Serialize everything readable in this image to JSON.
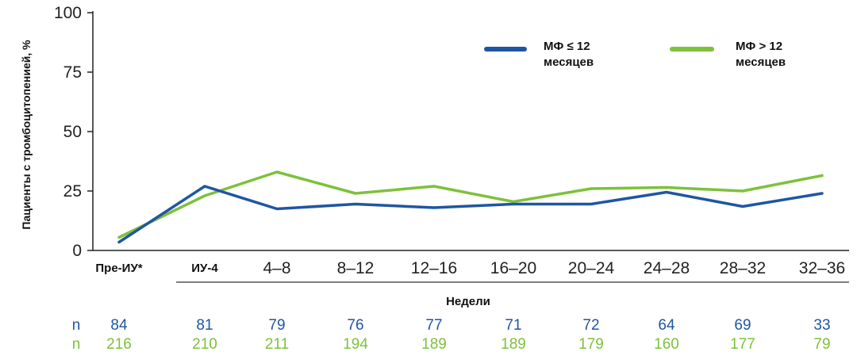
{
  "chart_data": {
    "type": "line",
    "categories": [
      "Пре-ИУ*",
      "ИУ-4",
      "4–8",
      "8–12",
      "12–16",
      "16–20",
      "20–24",
      "24–28",
      "28–32",
      "32–36"
    ],
    "bold_categories": [
      "Пре-ИУ*",
      "ИУ-4"
    ],
    "series": [
      {
        "name": "МФ ≤ 12 месяцев",
        "name_lines": [
          "МФ ≤ 12",
          "месяцев"
        ],
        "color": "#1f56a3",
        "values": [
          3.5,
          27,
          17.5,
          19.5,
          18,
          19.5,
          19.5,
          24.5,
          18.5,
          24
        ]
      },
      {
        "name": "МФ > 12 месяцев",
        "name_lines": [
          "МФ > 12",
          "месяцев"
        ],
        "color": "#7dc13b",
        "values": [
          5.5,
          23,
          33,
          24,
          27,
          20.5,
          26,
          26.5,
          25,
          31.5
        ]
      }
    ],
    "ylabel": "Пациенты с тромбоцитопенией, %",
    "xlabel": "Недели",
    "ylim": [
      0,
      100
    ],
    "yticks": [
      "0",
      "25",
      "50",
      "75",
      "100"
    ],
    "grid": false,
    "legend": "top-right",
    "n_rows": [
      {
        "label": "n",
        "color": "#1f56a3",
        "values": [
          "84",
          "81",
          "79",
          "76",
          "77",
          "71",
          "72",
          "64",
          "69",
          "33"
        ]
      },
      {
        "label": "n",
        "color": "#7dc13b",
        "values": [
          "216",
          "210",
          "211",
          "194",
          "189",
          "189",
          "179",
          "160",
          "177",
          "79"
        ]
      }
    ]
  }
}
